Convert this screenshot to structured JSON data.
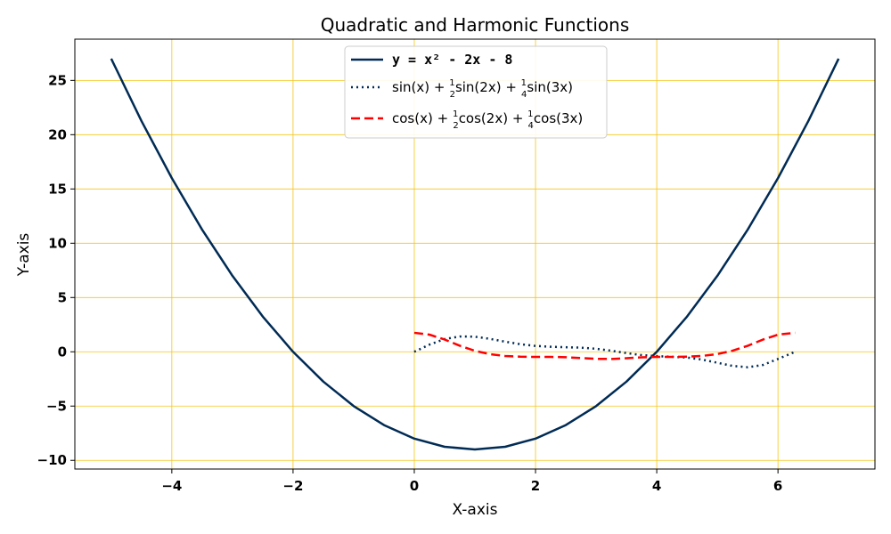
{
  "chart_data": {
    "type": "line",
    "title": "Quadratic and Harmonic Functions",
    "xlabel": "X-axis",
    "ylabel": "Y-axis",
    "xlim": [
      -5.6,
      7.6
    ],
    "ylim": [
      -10.8,
      28.8
    ],
    "xticks": [
      -4,
      -2,
      0,
      2,
      4,
      6
    ],
    "xtick_labels": [
      "−4",
      "−2",
      "0",
      "2",
      "4",
      "6"
    ],
    "yticks": [
      -10,
      -5,
      0,
      5,
      10,
      15,
      20,
      25
    ],
    "ytick_labels": [
      "−10",
      "−5",
      "0",
      "5",
      "10",
      "15",
      "20",
      "25"
    ],
    "grid": true,
    "grid_color": "#f5c518",
    "legend_position": "upper center",
    "series": [
      {
        "name": "y = x² - 2x - 8",
        "style": "solid",
        "color": "#002b55",
        "x": [
          -5,
          -4.5,
          -4,
          -3.5,
          -3,
          -2.5,
          -2,
          -1.5,
          -1,
          -0.5,
          0,
          0.5,
          1,
          1.5,
          2,
          2.5,
          3,
          3.5,
          4,
          4.5,
          5,
          5.5,
          6,
          6.5,
          7
        ],
        "y": [
          27,
          21.25,
          16,
          11.25,
          7,
          3.25,
          0,
          -2.75,
          -5,
          -6.75,
          -8,
          -8.75,
          -9,
          -8.75,
          -8,
          -6.75,
          -5,
          -2.75,
          0,
          3.25,
          7,
          11.25,
          16,
          21.25,
          27
        ]
      },
      {
        "name": "sin(x) + ½sin(2x) + ¼sin(3x)",
        "style": "dotted",
        "color": "#002b55",
        "x": [
          0,
          0.25,
          0.5,
          0.75,
          1,
          1.25,
          1.5,
          1.75,
          2,
          2.25,
          2.5,
          2.75,
          3,
          3.25,
          3.5,
          3.75,
          4,
          4.25,
          4.5,
          4.75,
          5,
          5.25,
          5.5,
          5.75,
          6,
          6.283
        ],
        "y": [
          0,
          0.66,
          1.17,
          1.41,
          1.39,
          1.19,
          0.93,
          0.7,
          0.54,
          0.46,
          0.42,
          0.38,
          0.28,
          0.1,
          -0.12,
          -0.3,
          -0.4,
          -0.46,
          -0.53,
          -0.72,
          -1.01,
          -1.3,
          -1.42,
          -1.22,
          -0.66,
          0
        ]
      },
      {
        "name": "cos(x) + ½cos(2x) + ¼cos(3x)",
        "style": "dashed",
        "color": "#ff0000",
        "x": [
          0,
          0.25,
          0.5,
          0.75,
          1,
          1.25,
          1.5,
          1.75,
          2,
          2.25,
          2.5,
          2.75,
          3,
          3.25,
          3.5,
          3.75,
          4,
          4.25,
          4.5,
          4.75,
          5,
          5.25,
          5.5,
          5.75,
          6,
          6.283
        ],
        "y": [
          1.75,
          1.58,
          1.13,
          0.56,
          0.09,
          -0.22,
          -0.39,
          -0.45,
          -0.47,
          -0.47,
          -0.5,
          -0.58,
          -0.65,
          -0.66,
          -0.59,
          -0.51,
          -0.47,
          -0.47,
          -0.45,
          -0.38,
          -0.21,
          0.1,
          0.55,
          1.12,
          1.58,
          1.75
        ]
      }
    ]
  },
  "legend_math": {
    "sin_prefix": "sin(x) + ",
    "sin_mid": "sin(2x) + ",
    "sin_suffix": "sin(3x)",
    "cos_prefix": "cos(x) + ",
    "cos_mid": "cos(2x) + ",
    "cos_suffix": "cos(3x)",
    "frac_half_num": "1",
    "frac_half_den": "2",
    "frac_quarter_num": "1",
    "frac_quarter_den": "4"
  }
}
